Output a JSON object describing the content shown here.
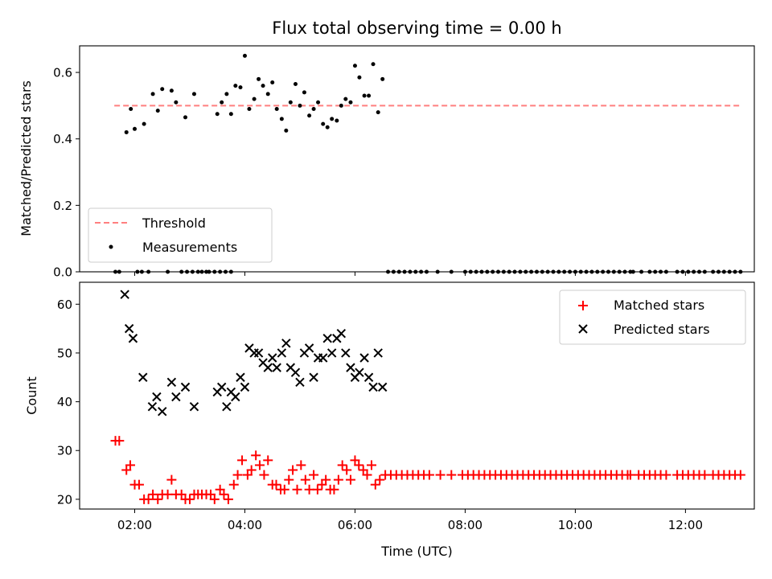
{
  "chart_data": [
    {
      "type": "scatter",
      "title": "Flux total observing time = 0.00 h",
      "xlabel": "",
      "ylabel": "Matched/Predicted stars",
      "ylim": [
        0,
        0.68
      ],
      "xlim": [
        1.0,
        13.25
      ],
      "yticks": [
        0.0,
        0.2,
        0.4,
        0.6
      ],
      "ytick_labels": [
        "0.0",
        "0.2",
        "0.4",
        "0.6"
      ],
      "legend_position": "lower-left",
      "threshold": {
        "name": "Threshold",
        "value": 0.5,
        "x": [
          1.63,
          13.0
        ],
        "color": "#ff7f7f"
      },
      "series": [
        {
          "name": "Measurements",
          "color": "#000000",
          "x": [
            1.85,
            1.93,
            2.0,
            2.17,
            2.33,
            2.42,
            2.5,
            2.67,
            2.75,
            2.92,
            3.08,
            3.5,
            3.58,
            3.67,
            3.75,
            3.83,
            3.92,
            4.0,
            4.08,
            4.17,
            4.25,
            4.33,
            4.42,
            4.5,
            4.58,
            4.67,
            4.75,
            4.83,
            4.92,
            5.0,
            5.08,
            5.17,
            5.25,
            5.33,
            5.42,
            5.5,
            5.58,
            5.67,
            5.75,
            5.83,
            5.92,
            6.0,
            6.08,
            6.17,
            6.25,
            6.33,
            6.42,
            6.5,
            1.65,
            1.72,
            2.05,
            2.13,
            2.25,
            2.6,
            2.85,
            2.95,
            3.05,
            3.15,
            3.22,
            3.3,
            3.35,
            3.45,
            3.55,
            3.65,
            3.75,
            6.6,
            6.7,
            6.8,
            6.9,
            7.0,
            7.1,
            7.2,
            7.3,
            7.5,
            7.75,
            8.0,
            8.1,
            8.2,
            8.3,
            8.4,
            8.5,
            8.6,
            8.7,
            8.8,
            8.9,
            9.0,
            9.1,
            9.2,
            9.3,
            9.4,
            9.5,
            9.6,
            9.7,
            9.8,
            9.9,
            10.0,
            10.1,
            10.2,
            10.3,
            10.4,
            10.5,
            10.6,
            10.7,
            10.8,
            10.9,
            11.0,
            11.05,
            11.2,
            11.35,
            11.45,
            11.55,
            11.65,
            11.85,
            11.95,
            12.05,
            12.15,
            12.25,
            12.35,
            12.5,
            12.6,
            12.7,
            12.8,
            12.9,
            13.0
          ],
          "y": [
            0.42,
            0.49,
            0.43,
            0.445,
            0.535,
            0.485,
            0.55,
            0.545,
            0.51,
            0.465,
            0.535,
            0.475,
            0.51,
            0.535,
            0.475,
            0.56,
            0.555,
            0.65,
            0.49,
            0.52,
            0.58,
            0.56,
            0.535,
            0.57,
            0.49,
            0.46,
            0.425,
            0.51,
            0.565,
            0.5,
            0.54,
            0.47,
            0.49,
            0.51,
            0.445,
            0.435,
            0.46,
            0.455,
            0.5,
            0.52,
            0.51,
            0.62,
            0.585,
            0.53,
            0.53,
            0.625,
            0.48,
            0.58,
            0,
            0,
            0,
            0,
            0,
            0,
            0,
            0,
            0,
            0,
            0,
            0,
            0,
            0,
            0,
            0,
            0,
            0,
            0,
            0,
            0,
            0,
            0,
            0,
            0,
            0,
            0,
            0,
            0,
            0,
            0,
            0,
            0,
            0,
            0,
            0,
            0,
            0,
            0,
            0,
            0,
            0,
            0,
            0,
            0,
            0,
            0,
            0,
            0,
            0,
            0,
            0,
            0,
            0,
            0,
            0,
            0,
            0,
            0,
            0,
            0,
            0,
            0,
            0,
            0,
            0,
            0,
            0,
            0,
            0,
            0,
            0,
            0,
            0,
            0,
            0
          ]
        }
      ]
    },
    {
      "type": "scatter",
      "title": "",
      "xlabel": "Time (UTC)",
      "ylabel": "Count",
      "ylim": [
        18,
        64.5
      ],
      "xlim": [
        1.0,
        13.25
      ],
      "yticks": [
        20,
        30,
        40,
        50,
        60
      ],
      "ytick_labels": [
        "20",
        "30",
        "40",
        "50",
        "60"
      ],
      "xticks": [
        2,
        4,
        6,
        8,
        10,
        12
      ],
      "xtick_labels": [
        "02:00",
        "04:00",
        "06:00",
        "08:00",
        "10:00",
        "12:00"
      ],
      "legend_position": "upper-right",
      "series": [
        {
          "name": "Matched stars",
          "marker": "plus",
          "color": "#ff0000",
          "x": [
            1.65,
            1.72,
            1.85,
            1.92,
            2.0,
            2.08,
            2.17,
            2.25,
            2.33,
            2.42,
            2.5,
            2.6,
            2.67,
            2.75,
            2.85,
            2.92,
            3.0,
            3.08,
            3.15,
            3.22,
            3.3,
            3.38,
            3.45,
            3.55,
            3.62,
            3.7,
            3.8,
            3.87,
            3.95,
            4.05,
            4.12,
            4.2,
            4.27,
            4.35,
            4.42,
            4.5,
            4.57,
            4.65,
            4.72,
            4.8,
            4.87,
            4.95,
            5.02,
            5.1,
            5.17,
            5.25,
            5.32,
            5.4,
            5.47,
            5.55,
            5.62,
            5.7,
            5.77,
            5.85,
            5.92,
            6.0,
            6.07,
            6.15,
            6.22,
            6.3,
            6.37,
            6.45,
            6.55,
            6.65,
            6.75,
            6.85,
            6.95,
            7.05,
            7.15,
            7.25,
            7.35,
            7.55,
            7.75,
            7.95,
            8.05,
            8.15,
            8.25,
            8.35,
            8.45,
            8.55,
            8.65,
            8.75,
            8.85,
            8.95,
            9.05,
            9.15,
            9.25,
            9.35,
            9.45,
            9.55,
            9.65,
            9.75,
            9.85,
            9.95,
            10.05,
            10.15,
            10.25,
            10.35,
            10.45,
            10.55,
            10.65,
            10.75,
            10.85,
            10.95,
            11.0,
            11.15,
            11.25,
            11.35,
            11.45,
            11.55,
            11.65,
            11.85,
            11.95,
            12.05,
            12.15,
            12.25,
            12.35,
            12.5,
            12.6,
            12.7,
            12.8,
            12.9,
            13.0
          ],
          "y": [
            32,
            32,
            26,
            27,
            23,
            23,
            20,
            20,
            21,
            20,
            21,
            21,
            24,
            21,
            21,
            20,
            20,
            21,
            21,
            21,
            21,
            21,
            20,
            22,
            21,
            20,
            23,
            25,
            28,
            25,
            26,
            29,
            27,
            25,
            28,
            23,
            23,
            22,
            22,
            24,
            26,
            22,
            27,
            24,
            22,
            25,
            22,
            23,
            24,
            22,
            22,
            24,
            27,
            26,
            24,
            28,
            27,
            26,
            25,
            27,
            23,
            24,
            25,
            25,
            25,
            25,
            25,
            25,
            25,
            25,
            25,
            25,
            25,
            25,
            25,
            25,
            25,
            25,
            25,
            25,
            25,
            25,
            25,
            25,
            25,
            25,
            25,
            25,
            25,
            25,
            25,
            25,
            25,
            25,
            25,
            25,
            25,
            25,
            25,
            25,
            25,
            25,
            25,
            25,
            25,
            25,
            25,
            25,
            25,
            25,
            25,
            25,
            25,
            25,
            25,
            25,
            25,
            25,
            25,
            25,
            25,
            25,
            25
          ]
        },
        {
          "name": "Predicted stars",
          "marker": "x",
          "color": "#000000",
          "x": [
            1.82,
            1.9,
            1.97,
            2.15,
            2.32,
            2.4,
            2.5,
            2.67,
            2.75,
            2.92,
            3.08,
            3.5,
            3.58,
            3.67,
            3.75,
            3.83,
            3.92,
            4.0,
            4.08,
            4.17,
            4.25,
            4.33,
            4.42,
            4.5,
            4.58,
            4.67,
            4.75,
            4.83,
            4.92,
            5.0,
            5.08,
            5.17,
            5.25,
            5.33,
            5.42,
            5.5,
            5.58,
            5.67,
            5.75,
            5.83,
            5.92,
            6.0,
            6.08,
            6.17,
            6.25,
            6.33,
            6.42,
            6.5
          ],
          "y": [
            62,
            55,
            53,
            45,
            39,
            41,
            38,
            44,
            41,
            43,
            39,
            42,
            43,
            39,
            42,
            41,
            45,
            43,
            51,
            50,
            50,
            48,
            47,
            49,
            47,
            50,
            52,
            47,
            46,
            44,
            50,
            51,
            45,
            49,
            49,
            53,
            50,
            53,
            54,
            50,
            47,
            45,
            46,
            49,
            45,
            43,
            50,
            43
          ]
        }
      ]
    }
  ]
}
